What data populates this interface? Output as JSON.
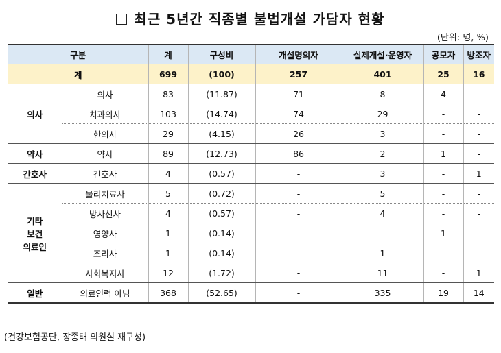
{
  "title": "최근 5년간 직종별 불법개설 가담자 현황",
  "unit": "(단위: 명, %)",
  "headers": [
    "구분",
    "계",
    "구성비",
    "개설명의자",
    "실제개설·운영자",
    "공모자",
    "방조자"
  ],
  "total": {
    "label": "계",
    "values": [
      "699",
      "(100)",
      "257",
      "401",
      "25",
      "16"
    ]
  },
  "groups": [
    {
      "name": "의사",
      "rows": [
        {
          "label": "의사",
          "values": [
            "83",
            "(11.87)",
            "71",
            "8",
            "4",
            "-"
          ]
        },
        {
          "label": "치과의사",
          "values": [
            "103",
            "(14.74)",
            "74",
            "29",
            "-",
            "-"
          ]
        },
        {
          "label": "한의사",
          "values": [
            "29",
            "(4.15)",
            "26",
            "3",
            "-",
            "-"
          ]
        }
      ]
    },
    {
      "name": "약사",
      "rows": [
        {
          "label": "약사",
          "values": [
            "89",
            "(12.73)",
            "86",
            "2",
            "1",
            "-"
          ]
        }
      ]
    },
    {
      "name": "간호사",
      "rows": [
        {
          "label": "간호사",
          "values": [
            "4",
            "(0.57)",
            "-",
            "3",
            "-",
            "1"
          ]
        }
      ]
    },
    {
      "name": "기타\n보건\n의료인",
      "rows": [
        {
          "label": "물리치료사",
          "values": [
            "5",
            "(0.72)",
            "-",
            "5",
            "-",
            "-"
          ]
        },
        {
          "label": "방사선사",
          "values": [
            "4",
            "(0.57)",
            "-",
            "4",
            "-",
            "-"
          ]
        },
        {
          "label": "영양사",
          "values": [
            "1",
            "(0.14)",
            "-",
            "-",
            "1",
            "-"
          ]
        },
        {
          "label": "조리사",
          "values": [
            "1",
            "(0.14)",
            "-",
            "1",
            "-",
            "-"
          ]
        },
        {
          "label": "사회복지사",
          "values": [
            "12",
            "(1.72)",
            "-",
            "11",
            "-",
            "1"
          ]
        }
      ]
    },
    {
      "name": "일반",
      "rows": [
        {
          "label": "의료인력 아님",
          "values": [
            "368",
            "(52.65)",
            "-",
            "335",
            "19",
            "14"
          ]
        }
      ]
    }
  ],
  "source": "(건강보험공단, 장종태 의원실 재구성)"
}
